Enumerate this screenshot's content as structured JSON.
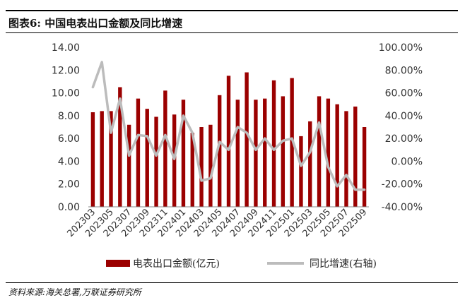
{
  "header": {
    "title": "图表6:  中国电表出口金额及同比增速"
  },
  "footer": {
    "source": "资料来源:海关总署,万联证券研究所"
  },
  "legend": {
    "bar_label": "电表出口金额(亿元)",
    "line_label": "同比增速(右轴)"
  },
  "colors": {
    "bar": "#9b0000",
    "line": "#bcbcbc",
    "axis": "#888888"
  },
  "chart_data": {
    "type": "bar+line",
    "title": "",
    "xlabel": "",
    "ylabel": "",
    "x_tick_labels": [
      "202303",
      "202305",
      "202307",
      "202309",
      "202311",
      "202401",
      "202403",
      "202405",
      "202407",
      "202409",
      "202411",
      "202501",
      "202503",
      "202505",
      "202507",
      "202509"
    ],
    "left_axis": {
      "ylim": [
        0,
        14
      ],
      "ticks": [
        "0.00",
        "2.00",
        "4.00",
        "6.00",
        "8.00",
        "10.00",
        "12.00",
        "14.00"
      ]
    },
    "right_axis": {
      "ylim": [
        -40,
        100
      ],
      "ticks": [
        "-40.00%",
        "-20.00%",
        "0.00%",
        "20.00%",
        "40.00%",
        "60.00%",
        "80.00%",
        "100.00%"
      ]
    },
    "categories": [
      "202303",
      "202304",
      "202305",
      "202306",
      "202307",
      "202308",
      "202309",
      "202310",
      "202311",
      "202312",
      "202401",
      "202402",
      "202403",
      "202404",
      "202405",
      "202406",
      "202407",
      "202408",
      "202409",
      "202410",
      "202411",
      "202412",
      "202501",
      "202502",
      "202503",
      "202504",
      "202505",
      "202506",
      "202507",
      "202508",
      "202509"
    ],
    "series": [
      {
        "name": "电表出口金额(亿元)",
        "axis": "left",
        "type": "bar",
        "values": [
          8.3,
          8.4,
          8.4,
          10.5,
          7.2,
          9.5,
          8.6,
          7.9,
          10.2,
          8.1,
          9.4,
          6.5,
          7.0,
          7.2,
          9.8,
          11.5,
          9.4,
          11.8,
          9.4,
          9.5,
          11.1,
          9.7,
          11.3,
          6.2,
          7.5,
          9.7,
          9.5,
          9.0,
          8.4,
          8.8,
          7.0
        ]
      },
      {
        "name": "同比增速(右轴)",
        "axis": "right",
        "type": "line",
        "values": [
          65,
          87,
          25,
          55,
          5,
          23,
          22,
          5,
          23,
          2,
          40,
          25,
          -17,
          -15,
          17,
          10,
          30,
          25,
          10,
          20,
          10,
          18,
          20,
          -4,
          8,
          34,
          -5,
          -22,
          -12,
          -25,
          -25
        ]
      }
    ],
    "grid": false,
    "legend_position": "bottom"
  }
}
